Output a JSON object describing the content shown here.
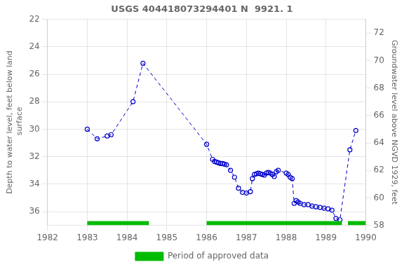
{
  "chart_data": {
    "type": "line",
    "title": "USGS 404418073294401 N  9921. 1",
    "ylabel": "Depth to water level, feet below land\n surface",
    "y2label": "Groundwater level above NGVD 1929, feet",
    "xlim": [
      1982,
      1990
    ],
    "xticks": [
      1982,
      1983,
      1984,
      1985,
      1986,
      1987,
      1988,
      1989,
      1990
    ],
    "ylim": [
      37,
      22
    ],
    "yticks": [
      22,
      24,
      26,
      28,
      30,
      32,
      34,
      36
    ],
    "y2lim": [
      58,
      73
    ],
    "y2ticks": [
      58,
      60,
      62,
      64,
      66,
      68,
      70,
      72
    ],
    "grid": true,
    "legend": "bottom",
    "x": [
      1983.0,
      1983.25,
      1983.5,
      1983.6,
      1984.15,
      1984.4,
      1986.0,
      1986.15,
      1986.2,
      1986.25,
      1986.3,
      1986.35,
      1986.4,
      1986.45,
      1986.5,
      1986.6,
      1986.7,
      1986.8,
      1986.9,
      1987.0,
      1987.1,
      1987.15,
      1987.2,
      1987.25,
      1987.3,
      1987.35,
      1987.4,
      1987.45,
      1987.5,
      1987.55,
      1987.6,
      1987.65,
      1987.7,
      1987.75,
      1987.8,
      1988.0,
      1988.05,
      1988.1,
      1988.15,
      1988.2,
      1988.25,
      1988.3,
      1988.35,
      1988.45,
      1988.55,
      1988.65,
      1988.75,
      1988.85,
      1988.95,
      1989.05,
      1989.15,
      1989.25,
      1989.35,
      1989.6,
      1989.75
    ],
    "series": [
      {
        "color": "#0000cc",
        "line_style": "dashed",
        "marker": "circle",
        "values": [
          30.0,
          30.7,
          30.5,
          30.4,
          28.0,
          25.2,
          31.1,
          32.2,
          32.35,
          32.4,
          32.45,
          32.5,
          32.5,
          32.55,
          32.6,
          33.0,
          33.5,
          34.3,
          34.6,
          34.65,
          34.55,
          33.6,
          33.3,
          33.25,
          33.2,
          33.25,
          33.3,
          33.35,
          33.2,
          33.15,
          33.2,
          33.3,
          33.45,
          33.1,
          33.0,
          33.2,
          33.3,
          33.5,
          33.6,
          35.4,
          35.2,
          35.3,
          35.4,
          35.5,
          35.5,
          35.6,
          35.65,
          35.7,
          35.75,
          35.8,
          35.9,
          36.5,
          36.6,
          31.5,
          30.1
        ]
      },
      {
        "name": "Period of approved data",
        "type": "bar",
        "color": "#00bb00",
        "periods": [
          [
            1983.0,
            1984.55
          ],
          [
            1986.0,
            1989.4
          ],
          [
            1989.55,
            1990.0
          ]
        ]
      }
    ]
  }
}
